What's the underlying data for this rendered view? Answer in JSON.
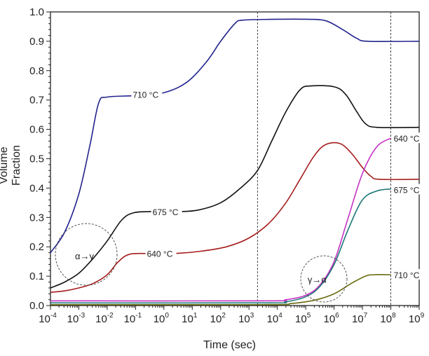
{
  "chart_data": {
    "type": "line",
    "xlabel": "Time (sec)",
    "ylabel": "Volume Fraction",
    "xscale": "log",
    "xlim": [
      -4,
      9
    ],
    "ylim": [
      0,
      1.0
    ],
    "xticks": [
      "-4",
      "-3",
      "-2",
      "-1",
      "0",
      "1",
      "2",
      "3",
      "4",
      "5",
      "6",
      "7",
      "8",
      "9"
    ],
    "yticks": [
      "0.0",
      "0.1",
      "0.2",
      "0.3",
      "0.4",
      "0.5",
      "0.6",
      "0.7",
      "0.8",
      "0.9",
      "1.0"
    ],
    "reference_lines_log10_sec": [
      3.3,
      8
    ],
    "annotations": [
      {
        "text": "α→γ",
        "at_log10_sec": -2.8,
        "at_y": 0.17
      },
      {
        "text": "γ→α",
        "at_log10_sec": 5.4,
        "at_y": 0.09
      }
    ],
    "series": [
      {
        "name": "710 °C",
        "color": "#23238f",
        "label_at": [
          -1.1,
          0.72
        ],
        "points": [
          [
            -4,
            0.18
          ],
          [
            -3.5,
            0.25
          ],
          [
            -3,
            0.38
          ],
          [
            -2.6,
            0.55
          ],
          [
            -2.3,
            0.69
          ],
          [
            -2,
            0.71
          ],
          [
            -1,
            0.715
          ],
          [
            0,
            0.725
          ],
          [
            0.8,
            0.76
          ],
          [
            1.5,
            0.83
          ],
          [
            2,
            0.9
          ],
          [
            2.5,
            0.96
          ],
          [
            2.8,
            0.972
          ],
          [
            4,
            0.975
          ],
          [
            5,
            0.975
          ],
          [
            5.7,
            0.97
          ],
          [
            6.3,
            0.94
          ],
          [
            6.8,
            0.91
          ],
          [
            7.2,
            0.9
          ],
          [
            9,
            0.9
          ]
        ]
      },
      {
        "name": "675 °C",
        "color": "#111111",
        "label_at": [
          -0.4,
          0.32
        ],
        "points": [
          [
            -4,
            0.06
          ],
          [
            -3.5,
            0.08
          ],
          [
            -3,
            0.11
          ],
          [
            -2.5,
            0.16
          ],
          [
            -2,
            0.22
          ],
          [
            -1.5,
            0.29
          ],
          [
            -1.1,
            0.315
          ],
          [
            -0.5,
            0.32
          ],
          [
            0.5,
            0.32
          ],
          [
            1.2,
            0.325
          ],
          [
            2,
            0.35
          ],
          [
            2.7,
            0.4
          ],
          [
            3.3,
            0.46
          ],
          [
            3.8,
            0.56
          ],
          [
            4.3,
            0.66
          ],
          [
            4.8,
            0.735
          ],
          [
            5.2,
            0.748
          ],
          [
            6,
            0.745
          ],
          [
            6.4,
            0.72
          ],
          [
            6.8,
            0.66
          ],
          [
            7.1,
            0.62
          ],
          [
            7.5,
            0.607
          ],
          [
            9,
            0.607
          ]
        ]
      },
      {
        "name": "640 °C",
        "color": "#a51d1d",
        "label_at": [
          -0.6,
          0.178
        ],
        "points": [
          [
            -4,
            0.045
          ],
          [
            -3.5,
            0.05
          ],
          [
            -3,
            0.06
          ],
          [
            -2.5,
            0.075
          ],
          [
            -2,
            0.105
          ],
          [
            -1.6,
            0.15
          ],
          [
            -1.2,
            0.175
          ],
          [
            -0.5,
            0.177
          ],
          [
            0.5,
            0.178
          ],
          [
            1.3,
            0.185
          ],
          [
            2.2,
            0.2
          ],
          [
            3,
            0.23
          ],
          [
            3.7,
            0.28
          ],
          [
            4.3,
            0.35
          ],
          [
            4.8,
            0.43
          ],
          [
            5.3,
            0.51
          ],
          [
            5.7,
            0.548
          ],
          [
            6.2,
            0.552
          ],
          [
            6.6,
            0.52
          ],
          [
            7,
            0.47
          ],
          [
            7.3,
            0.44
          ],
          [
            7.6,
            0.43
          ],
          [
            9,
            0.43
          ]
        ]
      },
      {
        "name": "640 °C",
        "color": "#c533c5",
        "label_at": [
          8.1,
          0.57
        ],
        "points": [
          [
            -4,
            0.016
          ],
          [
            3.5,
            0.016
          ],
          [
            4.3,
            0.02
          ],
          [
            5,
            0.035
          ],
          [
            5.5,
            0.07
          ],
          [
            6,
            0.15
          ],
          [
            6.5,
            0.3
          ],
          [
            7,
            0.45
          ],
          [
            7.5,
            0.54
          ],
          [
            8,
            0.57
          ]
        ]
      },
      {
        "name": "675 °C",
        "color": "#1f7777",
        "label_at": [
          8.1,
          0.395
        ],
        "points": [
          [
            -4,
            0.009
          ],
          [
            3.5,
            0.009
          ],
          [
            4.3,
            0.013
          ],
          [
            5,
            0.03
          ],
          [
            5.5,
            0.065
          ],
          [
            6,
            0.14
          ],
          [
            6.5,
            0.26
          ],
          [
            7,
            0.36
          ],
          [
            7.5,
            0.39
          ],
          [
            8,
            0.397
          ]
        ]
      },
      {
        "name": "710 °C",
        "color": "#6b6b12",
        "label_at": [
          8.1,
          0.105
        ],
        "points": [
          [
            -4,
            0.003
          ],
          [
            3.5,
            0.003
          ],
          [
            4.5,
            0.007
          ],
          [
            5.3,
            0.018
          ],
          [
            6,
            0.04
          ],
          [
            6.6,
            0.075
          ],
          [
            7.1,
            0.1
          ],
          [
            7.4,
            0.105
          ],
          [
            8,
            0.105
          ]
        ]
      }
    ]
  }
}
